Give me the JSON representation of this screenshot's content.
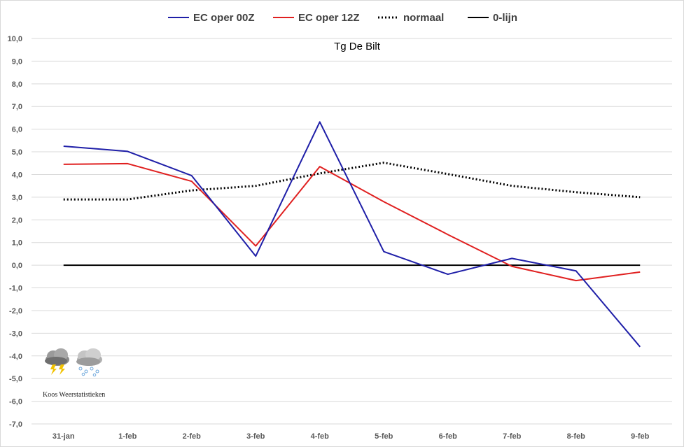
{
  "chart_data": {
    "type": "line",
    "title": "Tg De Bilt",
    "xlabel": "",
    "ylabel": "",
    "categories": [
      "31-jan",
      "1-feb",
      "2-feb",
      "3-feb",
      "4-feb",
      "5-feb",
      "6-feb",
      "7-feb",
      "8-feb",
      "9-feb"
    ],
    "ylim": [
      -7,
      10
    ],
    "yticks": [
      "10,0",
      "9,0",
      "8,0",
      "7,0",
      "6,0",
      "5,0",
      "4,0",
      "3,0",
      "2,0",
      "1,0",
      "0,0",
      "-1,0",
      "-2,0",
      "-3,0",
      "-4,0",
      "-5,0",
      "-6,0",
      "-7,0"
    ],
    "grid": "horizontal",
    "legend_position": "top",
    "series": [
      {
        "name": "EC oper 00Z",
        "color": "#1f1fa8",
        "style": "solid",
        "values": [
          5.25,
          5.02,
          3.95,
          0.4,
          6.32,
          0.6,
          -0.4,
          0.3,
          -0.25,
          -3.6
        ]
      },
      {
        "name": "EC oper 12Z",
        "color": "#e02020",
        "style": "solid",
        "values": [
          4.45,
          4.48,
          3.7,
          0.85,
          4.35,
          2.8,
          1.35,
          -0.05,
          -0.68,
          -0.3
        ]
      },
      {
        "name": "normaal",
        "color": "#000000",
        "style": "dotted",
        "values": [
          2.9,
          2.9,
          3.3,
          3.5,
          4.05,
          4.52,
          4.02,
          3.5,
          3.22,
          3.0
        ]
      },
      {
        "name": "0-lijn",
        "color": "#000000",
        "style": "solid",
        "values": [
          0,
          0,
          0,
          0,
          0,
          0,
          0,
          0,
          0,
          0
        ]
      }
    ],
    "watermark": {
      "text": "Koos Weerstatistieken",
      "icons": [
        "thunderstorm-cloud-icon",
        "snow-cloud-icon"
      ]
    }
  }
}
